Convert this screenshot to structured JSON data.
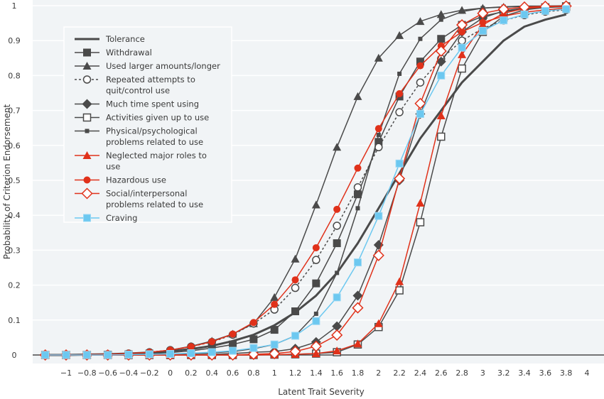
{
  "chart_data": {
    "type": "line",
    "title": "",
    "xlabel": "Latent Trait Severity",
    "ylabel": "Probability of Criterion Endorsement",
    "xlim": [
      -1.3,
      4.05
    ],
    "ylim": [
      0,
      1
    ],
    "grid": true,
    "legend_position": "top-left",
    "x_ticks": [
      "-1",
      "-0.8",
      "-0.6",
      "-0.4",
      "-0.2",
      "0",
      "0.2",
      "0.4",
      "0.6",
      "0.8",
      "1",
      "1.2",
      "1.4",
      "1.6",
      "1.8",
      "2",
      "2.2",
      "2.4",
      "2.6",
      "2.8",
      "3",
      "3.2",
      "3.4",
      "3.6",
      "3.8",
      "4"
    ],
    "x_tick_values": [
      -1,
      -0.8,
      -0.6,
      -0.4,
      -0.2,
      0,
      0.2,
      0.4,
      0.6,
      0.8,
      1,
      1.2,
      1.4,
      1.6,
      1.8,
      2,
      2.2,
      2.4,
      2.6,
      2.8,
      3,
      3.2,
      3.4,
      3.6,
      3.8,
      4
    ],
    "y_ticks": [
      "0",
      "0.1",
      "0.2",
      "0.3",
      "0.4",
      "0.5",
      "0.6",
      "0.7",
      "0.8",
      "0.9",
      "1"
    ],
    "y_tick_values": [
      0,
      0.1,
      0.2,
      0.3,
      0.4,
      0.5,
      0.6,
      0.7,
      0.8,
      0.9,
      1
    ],
    "x": [
      -1.2,
      -1.0,
      -0.8,
      -0.6,
      -0.4,
      -0.2,
      0.0,
      0.2,
      0.4,
      0.6,
      0.8,
      1.0,
      1.2,
      1.4,
      1.6,
      1.8,
      2.0,
      2.2,
      2.4,
      2.6,
      2.8,
      3.0,
      3.2,
      3.4,
      3.6,
      3.8
    ],
    "series": [
      {
        "name": "Tolerance",
        "color": "#4a4a4a",
        "marker": "none",
        "dash": false,
        "width": 3,
        "values": [
          0.0,
          0.0,
          0.001,
          0.002,
          0.004,
          0.007,
          0.011,
          0.017,
          0.026,
          0.04,
          0.058,
          0.085,
          0.122,
          0.17,
          0.235,
          0.32,
          0.42,
          0.52,
          0.62,
          0.7,
          0.78,
          0.84,
          0.9,
          0.94,
          0.96,
          0.975
        ]
      },
      {
        "name": "Withdrawal",
        "color": "#4a4a4a",
        "marker": "square-filled",
        "dash": false,
        "width": 1.5,
        "values": [
          0.0,
          0.0,
          0.0,
          0.001,
          0.002,
          0.004,
          0.007,
          0.012,
          0.02,
          0.03,
          0.045,
          0.072,
          0.125,
          0.205,
          0.32,
          0.46,
          0.61,
          0.74,
          0.84,
          0.905,
          0.945,
          0.97,
          0.983,
          0.99,
          0.995,
          0.997
        ]
      },
      {
        "name": "Used larger amounts/longer",
        "color": "#4a4a4a",
        "marker": "triangle-filled",
        "dash": false,
        "width": 1.5,
        "values": [
          0.0,
          0.0,
          0.001,
          0.002,
          0.004,
          0.008,
          0.014,
          0.025,
          0.04,
          0.06,
          0.09,
          0.165,
          0.275,
          0.43,
          0.595,
          0.74,
          0.85,
          0.915,
          0.955,
          0.975,
          0.987,
          0.993,
          0.996,
          0.998,
          0.999,
          0.999
        ]
      },
      {
        "name": "Repeated attempts to quit/control use",
        "color": "#4a4a4a",
        "marker": "circle-open",
        "dash": true,
        "width": 1.5,
        "values": [
          0.0,
          0.0,
          0.001,
          0.002,
          0.004,
          0.008,
          0.014,
          0.024,
          0.037,
          0.058,
          0.09,
          0.13,
          0.192,
          0.272,
          0.37,
          0.48,
          0.595,
          0.695,
          0.78,
          0.848,
          0.9,
          0.935,
          0.958,
          0.973,
          0.983,
          0.988
        ]
      },
      {
        "name": "Much time spent using",
        "color": "#4a4a4a",
        "marker": "diamond-filled",
        "dash": false,
        "width": 1.5,
        "values": [
          0.0,
          0.0,
          0.0,
          0.0,
          0.0,
          0.0,
          0.0,
          0.0,
          0.002,
          0.004,
          0.008,
          0.01,
          0.018,
          0.037,
          0.082,
          0.17,
          0.315,
          0.5,
          0.69,
          0.84,
          0.925,
          0.965,
          0.985,
          0.993,
          0.997,
          0.998
        ]
      },
      {
        "name": "Activities given up to use",
        "color": "#4a4a4a",
        "marker": "square-open",
        "dash": false,
        "width": 1.5,
        "values": [
          0.0,
          0.0,
          0.0,
          0.0,
          0.0,
          0.0,
          0.0,
          0.0,
          0.0,
          0.0,
          0.0,
          0.001,
          0.002,
          0.004,
          0.008,
          0.03,
          0.08,
          0.185,
          0.38,
          0.625,
          0.82,
          0.925,
          0.97,
          0.988,
          0.995,
          0.998
        ]
      },
      {
        "name": "Physical/psychological problems related to use",
        "color": "#4a4a4a",
        "marker": "square-small",
        "dash": false,
        "width": 1.5,
        "values": [
          0.0,
          0.0,
          0.0,
          0.0,
          0.0,
          0.001,
          0.002,
          0.003,
          0.006,
          0.01,
          0.018,
          0.03,
          0.055,
          0.118,
          0.235,
          0.42,
          0.63,
          0.805,
          0.905,
          0.96,
          0.983,
          0.993,
          0.997,
          0.999,
          0.999,
          1.0
        ]
      },
      {
        "name": "Neglected major roles to use",
        "color": "#e0311a",
        "marker": "triangle-filled",
        "dash": false,
        "width": 1.5,
        "values": [
          0.0,
          0.0,
          0.0,
          0.0,
          0.0,
          0.0,
          0.0,
          0.0,
          0.0,
          0.0,
          0.0,
          0.001,
          0.002,
          0.004,
          0.012,
          0.032,
          0.09,
          0.21,
          0.435,
          0.685,
          0.86,
          0.945,
          0.978,
          0.992,
          0.997,
          0.999
        ]
      },
      {
        "name": "Hazardous use",
        "color": "#e0311a",
        "marker": "circle-filled",
        "dash": false,
        "width": 1.5,
        "values": [
          0.0,
          0.0,
          0.001,
          0.002,
          0.004,
          0.008,
          0.014,
          0.024,
          0.038,
          0.06,
          0.093,
          0.145,
          0.215,
          0.307,
          0.417,
          0.535,
          0.648,
          0.748,
          0.828,
          0.885,
          0.925,
          0.952,
          0.97,
          0.981,
          0.988,
          0.993
        ]
      },
      {
        "name": "Social/interpersonal problems related to use",
        "color": "#e0311a",
        "marker": "diamond-open",
        "dash": false,
        "width": 1.5,
        "values": [
          0.0,
          0.0,
          0.0,
          0.0,
          0.0,
          0.0,
          0.0,
          0.0,
          0.0,
          0.0,
          0.002,
          0.004,
          0.01,
          0.025,
          0.057,
          0.135,
          0.285,
          0.505,
          0.72,
          0.87,
          0.945,
          0.978,
          0.99,
          0.996,
          0.998,
          0.999
        ]
      },
      {
        "name": "Craving",
        "color": "#6cc8f0",
        "marker": "square-filled",
        "dash": false,
        "width": 1.5,
        "values": [
          0.0,
          0.0,
          0.0,
          0.0,
          0.001,
          0.002,
          0.003,
          0.005,
          0.008,
          0.012,
          0.02,
          0.03,
          0.055,
          0.097,
          0.165,
          0.265,
          0.398,
          0.548,
          0.69,
          0.8,
          0.88,
          0.928,
          0.958,
          0.975,
          0.985,
          0.99
        ]
      }
    ]
  }
}
